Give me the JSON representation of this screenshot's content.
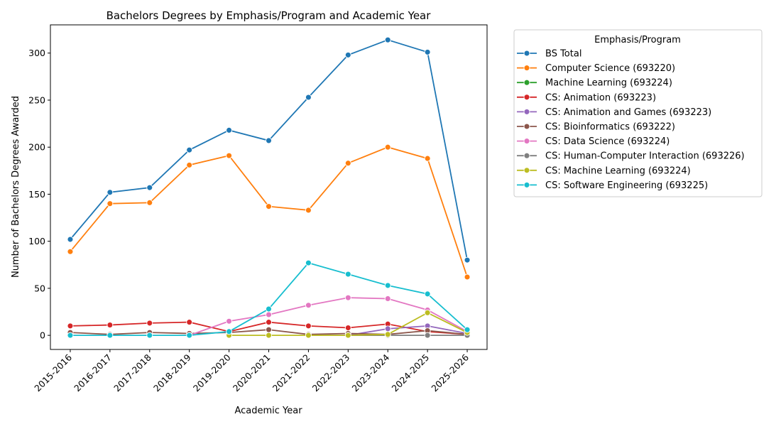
{
  "chart_data": {
    "type": "line",
    "title": "Bachelors Degrees by Emphasis/Program and Academic Year",
    "xlabel": "Academic Year",
    "ylabel": "Number of Bachelors Degrees Awarded",
    "categories": [
      "2015-2016",
      "2016-2017",
      "2017-2018",
      "2018-2019",
      "2019-2020",
      "2020-2021",
      "2021-2022",
      "2022-2023",
      "2023-2024",
      "2024-2025",
      "2025-2026"
    ],
    "ylim": [
      -15,
      330
    ],
    "yticks": [
      0,
      50,
      100,
      150,
      200,
      250,
      300
    ],
    "grid": false,
    "legend": {
      "title": "Emphasis/Program",
      "placement": "outside-right"
    },
    "series": [
      {
        "name": "BS Total",
        "color": "#1f77b4",
        "values": [
          102,
          152,
          157,
          197,
          218,
          207,
          253,
          298,
          314,
          301,
          80
        ]
      },
      {
        "name": "Computer Science (693220)",
        "color": "#ff7f0e",
        "values": [
          89,
          140,
          141,
          181,
          191,
          137,
          133,
          183,
          200,
          188,
          62
        ]
      },
      {
        "name": "Machine Learning (693224)",
        "color": "#2ca02c",
        "values": [
          null,
          null,
          null,
          null,
          null,
          null,
          null,
          null,
          null,
          null,
          null
        ]
      },
      {
        "name": "CS: Animation (693223)",
        "color": "#d62728",
        "values": [
          10,
          11,
          13,
          14,
          4,
          14,
          10,
          8,
          12,
          4,
          1
        ]
      },
      {
        "name": "CS: Animation and Games (693223)",
        "color": "#9467bd",
        "values": [
          null,
          null,
          null,
          null,
          null,
          null,
          0,
          0,
          7,
          10,
          2
        ]
      },
      {
        "name": "CS: Bioinformatics (693222)",
        "color": "#8c564b",
        "values": [
          3,
          1,
          3,
          2,
          3,
          6,
          1,
          2,
          1,
          5,
          1
        ]
      },
      {
        "name": "CS: Data Science (693224)",
        "color": "#e377c2",
        "values": [
          null,
          null,
          null,
          0,
          15,
          22,
          32,
          40,
          39,
          27,
          4
        ]
      },
      {
        "name": "CS: Human-Computer Interaction (693226)",
        "color": "#7f7f7f",
        "values": [
          null,
          null,
          null,
          null,
          null,
          null,
          null,
          0,
          0,
          0,
          0
        ]
      },
      {
        "name": "CS: Machine Learning (693224)",
        "color": "#bcbd22",
        "values": [
          null,
          null,
          null,
          null,
          0,
          0,
          0,
          0,
          1,
          24,
          3
        ]
      },
      {
        "name": "CS: Software Engineering (693225)",
        "color": "#17becf",
        "values": [
          0,
          0,
          0,
          0,
          4,
          28,
          77,
          65,
          53,
          44,
          6
        ]
      }
    ]
  }
}
